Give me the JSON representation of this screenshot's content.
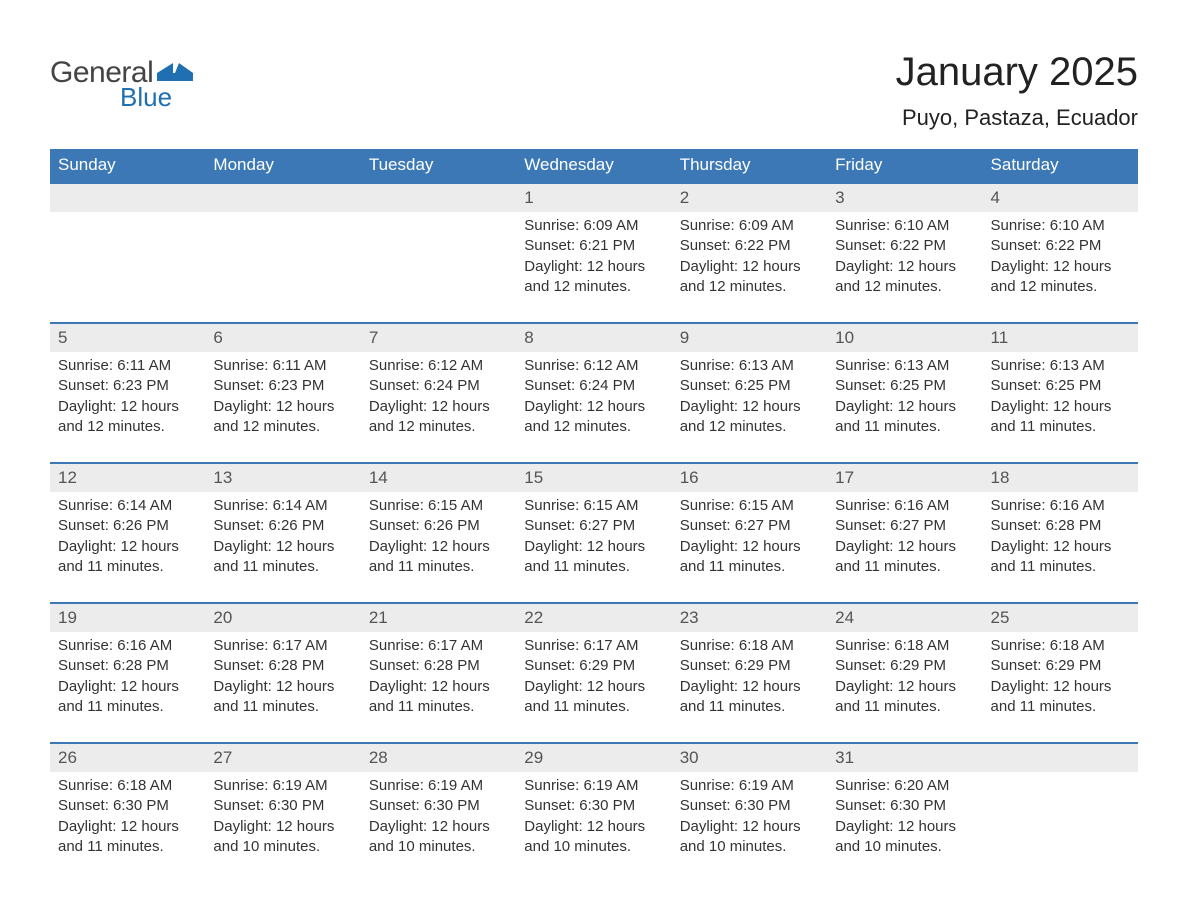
{
  "logo": {
    "text1": "General",
    "text2": "Blue",
    "shape_color": "#1f6fb2"
  },
  "header": {
    "month_title": "January 2025",
    "location": "Puyo, Pastaza, Ecuador"
  },
  "styling": {
    "header_bg": "#3b78b5",
    "header_text_color": "#ffffff",
    "daynum_bg": "#ececec",
    "daynum_border_top": "#3b78b5",
    "body_text_color": "#333333",
    "page_bg": "#ffffff",
    "weekday_fontsize": 17,
    "daynum_fontsize": 17,
    "content_fontsize": 15,
    "title_fontsize": 40,
    "location_fontsize": 22
  },
  "weekdays": [
    "Sunday",
    "Monday",
    "Tuesday",
    "Wednesday",
    "Thursday",
    "Friday",
    "Saturday"
  ],
  "weeks": [
    [
      {
        "n": "",
        "sunrise": "",
        "sunset": "",
        "daylight1": "",
        "daylight2": ""
      },
      {
        "n": "",
        "sunrise": "",
        "sunset": "",
        "daylight1": "",
        "daylight2": ""
      },
      {
        "n": "",
        "sunrise": "",
        "sunset": "",
        "daylight1": "",
        "daylight2": ""
      },
      {
        "n": "1",
        "sunrise": "Sunrise: 6:09 AM",
        "sunset": "Sunset: 6:21 PM",
        "daylight1": "Daylight: 12 hours",
        "daylight2": "and 12 minutes."
      },
      {
        "n": "2",
        "sunrise": "Sunrise: 6:09 AM",
        "sunset": "Sunset: 6:22 PM",
        "daylight1": "Daylight: 12 hours",
        "daylight2": "and 12 minutes."
      },
      {
        "n": "3",
        "sunrise": "Sunrise: 6:10 AM",
        "sunset": "Sunset: 6:22 PM",
        "daylight1": "Daylight: 12 hours",
        "daylight2": "and 12 minutes."
      },
      {
        "n": "4",
        "sunrise": "Sunrise: 6:10 AM",
        "sunset": "Sunset: 6:22 PM",
        "daylight1": "Daylight: 12 hours",
        "daylight2": "and 12 minutes."
      }
    ],
    [
      {
        "n": "5",
        "sunrise": "Sunrise: 6:11 AM",
        "sunset": "Sunset: 6:23 PM",
        "daylight1": "Daylight: 12 hours",
        "daylight2": "and 12 minutes."
      },
      {
        "n": "6",
        "sunrise": "Sunrise: 6:11 AM",
        "sunset": "Sunset: 6:23 PM",
        "daylight1": "Daylight: 12 hours",
        "daylight2": "and 12 minutes."
      },
      {
        "n": "7",
        "sunrise": "Sunrise: 6:12 AM",
        "sunset": "Sunset: 6:24 PM",
        "daylight1": "Daylight: 12 hours",
        "daylight2": "and 12 minutes."
      },
      {
        "n": "8",
        "sunrise": "Sunrise: 6:12 AM",
        "sunset": "Sunset: 6:24 PM",
        "daylight1": "Daylight: 12 hours",
        "daylight2": "and 12 minutes."
      },
      {
        "n": "9",
        "sunrise": "Sunrise: 6:13 AM",
        "sunset": "Sunset: 6:25 PM",
        "daylight1": "Daylight: 12 hours",
        "daylight2": "and 12 minutes."
      },
      {
        "n": "10",
        "sunrise": "Sunrise: 6:13 AM",
        "sunset": "Sunset: 6:25 PM",
        "daylight1": "Daylight: 12 hours",
        "daylight2": "and 11 minutes."
      },
      {
        "n": "11",
        "sunrise": "Sunrise: 6:13 AM",
        "sunset": "Sunset: 6:25 PM",
        "daylight1": "Daylight: 12 hours",
        "daylight2": "and 11 minutes."
      }
    ],
    [
      {
        "n": "12",
        "sunrise": "Sunrise: 6:14 AM",
        "sunset": "Sunset: 6:26 PM",
        "daylight1": "Daylight: 12 hours",
        "daylight2": "and 11 minutes."
      },
      {
        "n": "13",
        "sunrise": "Sunrise: 6:14 AM",
        "sunset": "Sunset: 6:26 PM",
        "daylight1": "Daylight: 12 hours",
        "daylight2": "and 11 minutes."
      },
      {
        "n": "14",
        "sunrise": "Sunrise: 6:15 AM",
        "sunset": "Sunset: 6:26 PM",
        "daylight1": "Daylight: 12 hours",
        "daylight2": "and 11 minutes."
      },
      {
        "n": "15",
        "sunrise": "Sunrise: 6:15 AM",
        "sunset": "Sunset: 6:27 PM",
        "daylight1": "Daylight: 12 hours",
        "daylight2": "and 11 minutes."
      },
      {
        "n": "16",
        "sunrise": "Sunrise: 6:15 AM",
        "sunset": "Sunset: 6:27 PM",
        "daylight1": "Daylight: 12 hours",
        "daylight2": "and 11 minutes."
      },
      {
        "n": "17",
        "sunrise": "Sunrise: 6:16 AM",
        "sunset": "Sunset: 6:27 PM",
        "daylight1": "Daylight: 12 hours",
        "daylight2": "and 11 minutes."
      },
      {
        "n": "18",
        "sunrise": "Sunrise: 6:16 AM",
        "sunset": "Sunset: 6:28 PM",
        "daylight1": "Daylight: 12 hours",
        "daylight2": "and 11 minutes."
      }
    ],
    [
      {
        "n": "19",
        "sunrise": "Sunrise: 6:16 AM",
        "sunset": "Sunset: 6:28 PM",
        "daylight1": "Daylight: 12 hours",
        "daylight2": "and 11 minutes."
      },
      {
        "n": "20",
        "sunrise": "Sunrise: 6:17 AM",
        "sunset": "Sunset: 6:28 PM",
        "daylight1": "Daylight: 12 hours",
        "daylight2": "and 11 minutes."
      },
      {
        "n": "21",
        "sunrise": "Sunrise: 6:17 AM",
        "sunset": "Sunset: 6:28 PM",
        "daylight1": "Daylight: 12 hours",
        "daylight2": "and 11 minutes."
      },
      {
        "n": "22",
        "sunrise": "Sunrise: 6:17 AM",
        "sunset": "Sunset: 6:29 PM",
        "daylight1": "Daylight: 12 hours",
        "daylight2": "and 11 minutes."
      },
      {
        "n": "23",
        "sunrise": "Sunrise: 6:18 AM",
        "sunset": "Sunset: 6:29 PM",
        "daylight1": "Daylight: 12 hours",
        "daylight2": "and 11 minutes."
      },
      {
        "n": "24",
        "sunrise": "Sunrise: 6:18 AM",
        "sunset": "Sunset: 6:29 PM",
        "daylight1": "Daylight: 12 hours",
        "daylight2": "and 11 minutes."
      },
      {
        "n": "25",
        "sunrise": "Sunrise: 6:18 AM",
        "sunset": "Sunset: 6:29 PM",
        "daylight1": "Daylight: 12 hours",
        "daylight2": "and 11 minutes."
      }
    ],
    [
      {
        "n": "26",
        "sunrise": "Sunrise: 6:18 AM",
        "sunset": "Sunset: 6:30 PM",
        "daylight1": "Daylight: 12 hours",
        "daylight2": "and 11 minutes."
      },
      {
        "n": "27",
        "sunrise": "Sunrise: 6:19 AM",
        "sunset": "Sunset: 6:30 PM",
        "daylight1": "Daylight: 12 hours",
        "daylight2": "and 10 minutes."
      },
      {
        "n": "28",
        "sunrise": "Sunrise: 6:19 AM",
        "sunset": "Sunset: 6:30 PM",
        "daylight1": "Daylight: 12 hours",
        "daylight2": "and 10 minutes."
      },
      {
        "n": "29",
        "sunrise": "Sunrise: 6:19 AM",
        "sunset": "Sunset: 6:30 PM",
        "daylight1": "Daylight: 12 hours",
        "daylight2": "and 10 minutes."
      },
      {
        "n": "30",
        "sunrise": "Sunrise: 6:19 AM",
        "sunset": "Sunset: 6:30 PM",
        "daylight1": "Daylight: 12 hours",
        "daylight2": "and 10 minutes."
      },
      {
        "n": "31",
        "sunrise": "Sunrise: 6:20 AM",
        "sunset": "Sunset: 6:30 PM",
        "daylight1": "Daylight: 12 hours",
        "daylight2": "and 10 minutes."
      },
      {
        "n": "",
        "sunrise": "",
        "sunset": "",
        "daylight1": "",
        "daylight2": ""
      }
    ]
  ]
}
